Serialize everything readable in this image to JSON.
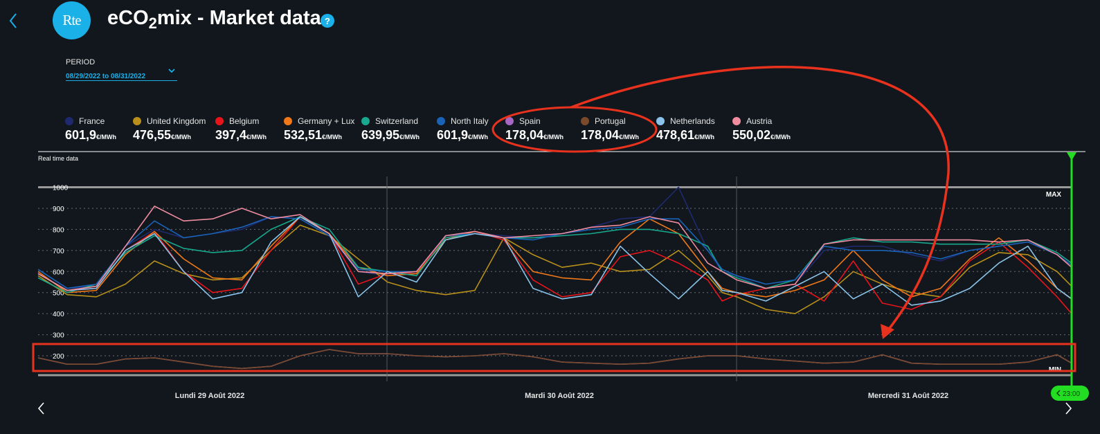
{
  "header": {
    "logo_text": "Rte",
    "title_main": "eCO",
    "title_sub": "2",
    "title_rest": "mix - Market data",
    "help_label": "?"
  },
  "period": {
    "label": "PERIOD",
    "value": "08/29/2022 to 08/31/2022"
  },
  "legend": [
    {
      "name": "France",
      "value": "601,9",
      "unit": "€/MWh",
      "color": "#1f2a6e"
    },
    {
      "name": "United Kingdom",
      "value": "476,55",
      "unit": "€/MWh",
      "color": "#b8901a"
    },
    {
      "name": "Belgium",
      "value": "397,4",
      "unit": "€/MWh",
      "color": "#e8141b"
    },
    {
      "name": "Germany + Lux",
      "value": "532,51",
      "unit": "€/MWh",
      "color": "#f07818"
    },
    {
      "name": "Switzerland",
      "value": "639,95",
      "unit": "€/MWh",
      "color": "#17a88e"
    },
    {
      "name": "North Italy",
      "value": "601,9",
      "unit": "€/MWh",
      "color": "#1a63b8"
    },
    {
      "name": "Spain",
      "value": "178,04",
      "unit": "€/MWh",
      "color": "#a666c4"
    },
    {
      "name": "Portugal",
      "value": "178,04",
      "unit": "€/MWh",
      "color": "#7a4a2a"
    },
    {
      "name": "Netherlands",
      "value": "478,61",
      "unit": "€/MWh",
      "color": "#8ac4ea"
    },
    {
      "name": "Austria",
      "value": "550,02",
      "unit": "€/MWh",
      "color": "#f08ca0"
    }
  ],
  "chart_labels": {
    "realtime": "Real time data",
    "max": "MAX",
    "min": "MIN",
    "time_marker": "23:00"
  },
  "colors": {
    "accent": "#1ab0e8",
    "time_marker": "#22dd22",
    "annotation": "#e8321e"
  },
  "chart_data": {
    "type": "line",
    "title": "",
    "ylim": [
      130,
      1000
    ],
    "yticks": [
      200,
      300,
      400,
      500,
      600,
      700,
      800,
      900,
      1000
    ],
    "day_labels": [
      "Lundi 29 Août 2022",
      "Mardi 30 Août 2022",
      "Mercredi 31 Août 2022"
    ],
    "x_unit": "hour index from 29/08 00:00 (3 days, 72 hours)",
    "xlim": [
      0,
      71
    ],
    "grid": true,
    "series": [
      {
        "name": "France",
        "color": "#1f2a6e",
        "x": [
          0,
          2,
          4,
          6,
          8,
          10,
          12,
          14,
          16,
          18,
          20,
          22,
          24,
          26,
          28,
          30,
          32,
          34,
          36,
          38,
          40,
          42,
          44,
          46,
          47,
          48,
          50,
          52,
          54,
          56,
          58,
          60,
          62,
          64,
          66,
          68,
          70,
          71
        ],
        "y": [
          610,
          520,
          530,
          720,
          800,
          760,
          780,
          800,
          860,
          850,
          770,
          600,
          580,
          600,
          770,
          780,
          770,
          760,
          780,
          810,
          850,
          860,
          1000,
          700,
          600,
          580,
          520,
          540,
          700,
          720,
          720,
          680,
          650,
          700,
          720,
          740,
          680,
          620
        ]
      },
      {
        "name": "United Kingdom",
        "color": "#b8901a",
        "x": [
          0,
          2,
          4,
          6,
          8,
          10,
          12,
          14,
          16,
          18,
          20,
          22,
          24,
          26,
          28,
          30,
          32,
          34,
          36,
          38,
          40,
          42,
          44,
          46,
          47,
          48,
          50,
          52,
          54,
          56,
          58,
          60,
          62,
          64,
          66,
          68,
          70,
          71
        ],
        "y": [
          580,
          490,
          480,
          540,
          650,
          590,
          560,
          570,
          700,
          820,
          770,
          660,
          550,
          510,
          490,
          510,
          760,
          680,
          620,
          640,
          600,
          610,
          700,
          580,
          500,
          480,
          420,
          400,
          480,
          600,
          540,
          500,
          480,
          620,
          690,
          680,
          600,
          530
        ]
      },
      {
        "name": "Belgium",
        "color": "#e8141b",
        "x": [
          0,
          2,
          4,
          6,
          8,
          10,
          12,
          14,
          16,
          18,
          20,
          22,
          24,
          26,
          28,
          30,
          32,
          34,
          36,
          38,
          40,
          42,
          44,
          46,
          47,
          48,
          50,
          52,
          54,
          56,
          58,
          60,
          62,
          64,
          66,
          68,
          70,
          71
        ],
        "y": [
          590,
          510,
          520,
          700,
          790,
          600,
          500,
          520,
          700,
          860,
          780,
          540,
          590,
          590,
          760,
          790,
          750,
          560,
          480,
          500,
          670,
          700,
          640,
          560,
          460,
          490,
          520,
          540,
          460,
          650,
          450,
          420,
          480,
          650,
          740,
          620,
          480,
          400
        ]
      },
      {
        "name": "Germany + Lux",
        "color": "#f07818",
        "x": [
          0,
          2,
          4,
          6,
          8,
          10,
          12,
          14,
          16,
          18,
          20,
          22,
          24,
          26,
          28,
          30,
          32,
          34,
          36,
          38,
          40,
          42,
          44,
          46,
          47,
          48,
          50,
          52,
          54,
          56,
          58,
          60,
          62,
          64,
          66,
          68,
          70,
          71
        ],
        "y": [
          600,
          500,
          510,
          680,
          790,
          660,
          570,
          560,
          720,
          860,
          780,
          620,
          580,
          590,
          750,
          790,
          760,
          600,
          570,
          560,
          740,
          850,
          780,
          600,
          520,
          500,
          480,
          510,
          560,
          700,
          560,
          480,
          520,
          660,
          760,
          650,
          520,
          470
        ]
      },
      {
        "name": "Switzerland",
        "color": "#17a88e",
        "x": [
          0,
          2,
          4,
          6,
          8,
          10,
          12,
          14,
          16,
          18,
          20,
          22,
          24,
          26,
          28,
          30,
          32,
          34,
          36,
          38,
          40,
          42,
          44,
          46,
          47,
          48,
          50,
          52,
          54,
          56,
          58,
          60,
          62,
          64,
          66,
          68,
          70,
          71
        ],
        "y": [
          570,
          500,
          540,
          690,
          770,
          710,
          690,
          700,
          800,
          860,
          800,
          620,
          600,
          580,
          760,
          780,
          760,
          760,
          770,
          780,
          800,
          800,
          780,
          720,
          600,
          570,
          520,
          560,
          730,
          760,
          740,
          740,
          730,
          730,
          730,
          750,
          690,
          640
        ]
      },
      {
        "name": "North Italy",
        "color": "#1a63b8",
        "x": [
          0,
          2,
          4,
          6,
          8,
          10,
          12,
          14,
          16,
          18,
          20,
          22,
          24,
          26,
          28,
          30,
          32,
          34,
          36,
          38,
          40,
          42,
          44,
          46,
          47,
          48,
          50,
          52,
          54,
          56,
          58,
          60,
          62,
          64,
          66,
          68,
          70,
          71
        ],
        "y": [
          610,
          520,
          540,
          720,
          840,
          760,
          780,
          810,
          860,
          850,
          770,
          610,
          600,
          600,
          770,
          780,
          760,
          750,
          780,
          800,
          810,
          850,
          850,
          700,
          610,
          580,
          540,
          560,
          720,
          700,
          700,
          690,
          660,
          700,
          720,
          740,
          680,
          630
        ]
      },
      {
        "name": "Spain",
        "color": "#a666c4",
        "x": [
          0,
          2,
          4,
          6,
          8,
          10,
          12,
          14,
          16,
          17,
          18,
          20,
          22,
          24,
          26,
          28,
          30,
          32,
          34,
          36,
          38,
          40,
          42,
          44,
          46,
          48,
          50,
          52,
          54,
          56,
          58,
          60,
          62,
          64,
          66,
          68,
          70,
          71
        ],
        "y": [
          190,
          160,
          160,
          185,
          190,
          170,
          150,
          140,
          150,
          175,
          200,
          230,
          210,
          210,
          200,
          195,
          200,
          210,
          195,
          170,
          165,
          160,
          165,
          185,
          200,
          200,
          185,
          175,
          165,
          170,
          205,
          165,
          160,
          160,
          160,
          170,
          205,
          165
        ]
      },
      {
        "name": "Portugal",
        "color": "#7a4a2a",
        "x": [
          0,
          2,
          4,
          6,
          8,
          10,
          12,
          14,
          16,
          17,
          18,
          20,
          22,
          24,
          26,
          28,
          30,
          32,
          34,
          36,
          38,
          40,
          42,
          44,
          46,
          48,
          50,
          52,
          54,
          56,
          58,
          60,
          62,
          64,
          66,
          68,
          70,
          71
        ],
        "y": [
          190,
          160,
          160,
          185,
          190,
          170,
          150,
          140,
          150,
          175,
          200,
          230,
          210,
          210,
          200,
          195,
          200,
          210,
          195,
          170,
          165,
          160,
          165,
          185,
          200,
          200,
          185,
          175,
          165,
          170,
          205,
          165,
          160,
          160,
          160,
          170,
          205,
          165
        ]
      },
      {
        "name": "Netherlands",
        "color": "#8ac4ea",
        "x": [
          0,
          2,
          4,
          6,
          8,
          10,
          12,
          14,
          16,
          18,
          20,
          22,
          24,
          26,
          28,
          30,
          32,
          34,
          36,
          38,
          40,
          42,
          44,
          46,
          47,
          48,
          50,
          52,
          54,
          56,
          58,
          60,
          62,
          64,
          66,
          68,
          70,
          71
        ],
        "y": [
          590,
          510,
          520,
          700,
          780,
          600,
          470,
          500,
          740,
          860,
          780,
          480,
          600,
          550,
          750,
          780,
          760,
          520,
          470,
          490,
          720,
          590,
          470,
          600,
          510,
          500,
          460,
          530,
          600,
          470,
          540,
          440,
          460,
          520,
          640,
          720,
          520,
          470
        ]
      },
      {
        "name": "Austria",
        "color": "#f08ca0",
        "x": [
          0,
          2,
          4,
          6,
          8,
          10,
          12,
          14,
          16,
          18,
          20,
          22,
          24,
          26,
          28,
          30,
          32,
          34,
          36,
          38,
          40,
          42,
          44,
          46,
          47,
          48,
          50,
          52,
          54,
          56,
          58,
          60,
          62,
          64,
          66,
          68,
          70,
          71
        ],
        "y": [
          590,
          510,
          530,
          720,
          910,
          840,
          850,
          900,
          850,
          870,
          780,
          600,
          590,
          600,
          770,
          790,
          760,
          770,
          780,
          810,
          820,
          860,
          830,
          640,
          600,
          560,
          520,
          540,
          730,
          750,
          750,
          750,
          750,
          750,
          740,
          750,
          680,
          620
        ]
      }
    ]
  }
}
